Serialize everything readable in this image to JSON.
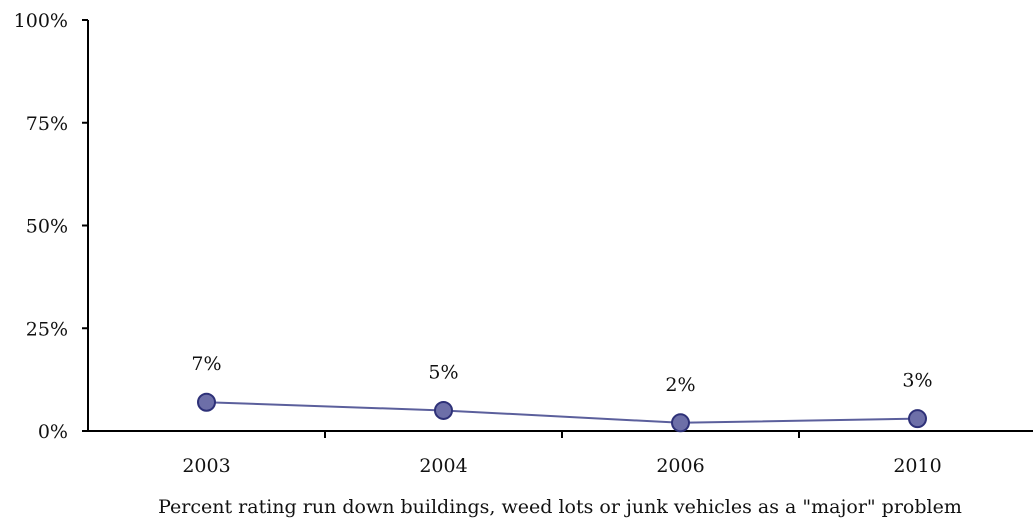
{
  "chart_data": {
    "type": "line",
    "categories": [
      "2003",
      "2004",
      "2006",
      "2010"
    ],
    "series": [
      {
        "values": [
          7,
          5,
          2,
          3
        ],
        "data_labels": [
          "7%",
          "5%",
          "2%",
          "3%"
        ]
      }
    ],
    "ylim": [
      0,
      100
    ],
    "yticks": [
      0,
      25,
      50,
      75,
      100
    ],
    "ytick_labels": [
      "0%",
      "25%",
      "50%",
      "75%",
      "100%"
    ],
    "xlabel": "Percent rating run down buildings, weed lots or junk vehicles as a \"major\" problem",
    "ylabel": "",
    "title": "",
    "grid": false,
    "legend": "none",
    "colors": {
      "line": "#5b5f9c",
      "marker_fill": "#6d6fa8",
      "marker_stroke": "#2e3178",
      "axis": "#000000"
    }
  }
}
